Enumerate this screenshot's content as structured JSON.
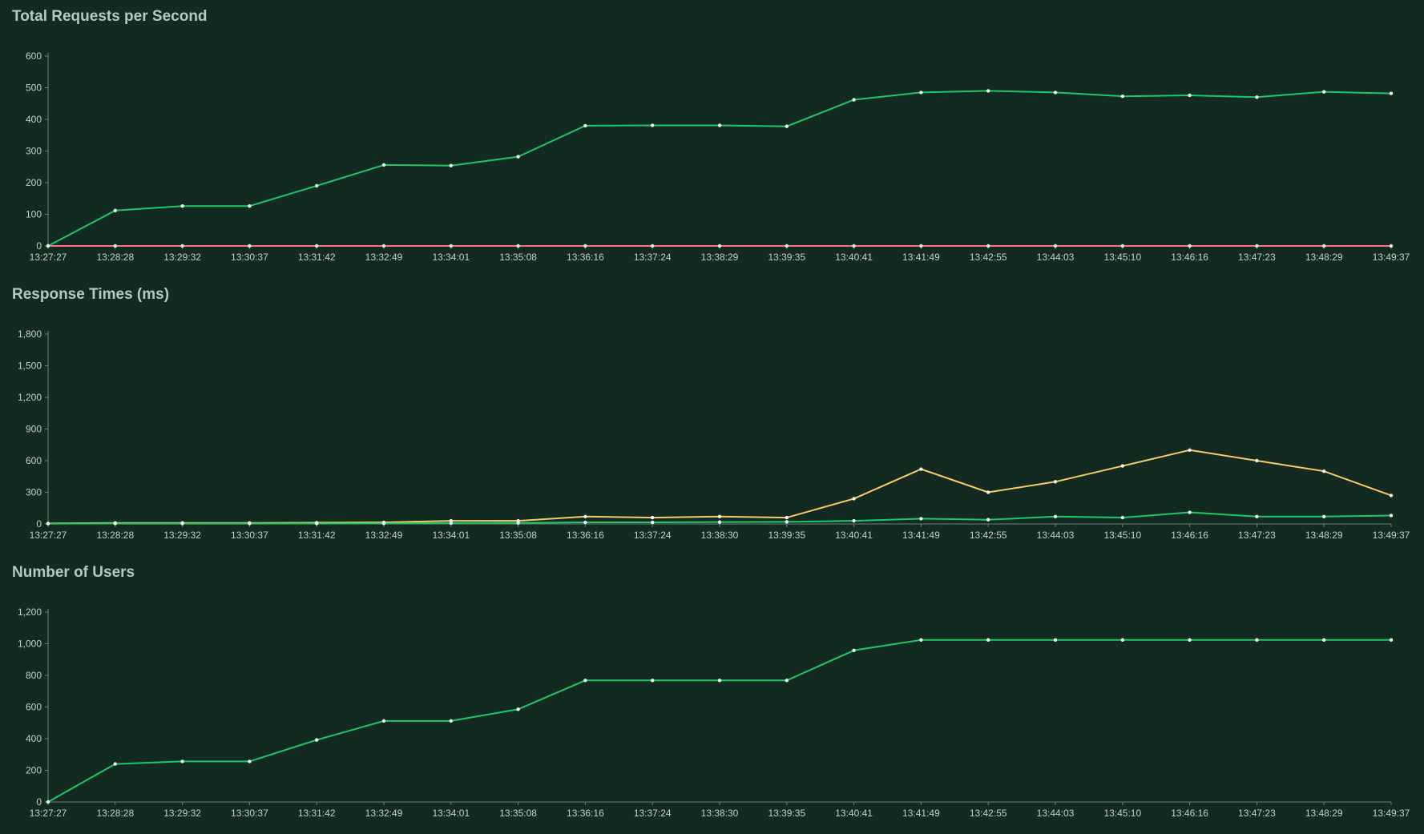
{
  "colors": {
    "background": "#132a21",
    "green": "#1fc864",
    "yellow": "#f4cc63",
    "red": "#ff6f7d",
    "axis": "#6c7d74"
  },
  "chart_data": [
    {
      "type": "line",
      "title": "Total Requests per Second",
      "ylim": [
        0,
        600
      ],
      "y_ticks": [
        0,
        100,
        200,
        300,
        400,
        500,
        600
      ],
      "y_tick_labels": [
        "0",
        "100",
        "200",
        "300",
        "400",
        "500",
        "600"
      ],
      "x_tick_labels": [
        "13:27:27",
        "13:28:28",
        "13:29:32",
        "13:30:37",
        "13:31:42",
        "13:32:49",
        "13:34:01",
        "13:35:08",
        "13:36:16",
        "13:37:24",
        "13:38:29",
        "13:39:35",
        "13:40:41",
        "13:41:49",
        "13:42:55",
        "13:44:03",
        "13:45:10",
        "13:46:16",
        "13:47:23",
        "13:48:29",
        "13:49:37"
      ],
      "x": [
        "13:27:27",
        "13:28:28",
        "13:29:32",
        "13:30:37",
        "13:31:42",
        "13:32:49",
        "13:34:01",
        "13:35:08",
        "13:36:16",
        "13:37:24",
        "13:38:29",
        "13:39:35",
        "13:40:41",
        "13:41:49",
        "13:42:55",
        "13:44:03",
        "13:45:10",
        "13:46:16",
        "13:47:23",
        "13:48:29",
        "13:49:37"
      ],
      "grid": false,
      "series": [
        {
          "color": "#1fc864",
          "values": [
            0,
            112,
            126,
            126,
            190,
            256,
            254,
            282,
            380,
            381,
            381,
            378,
            462,
            485,
            490,
            485,
            473,
            476,
            470,
            487,
            482
          ]
        },
        {
          "color": "#ff6f7d",
          "values": [
            0,
            0,
            0,
            0,
            0,
            0,
            0,
            0,
            0,
            0,
            0,
            0,
            0,
            0,
            0,
            0,
            0,
            0,
            0,
            0,
            0
          ]
        }
      ]
    },
    {
      "type": "line",
      "title": "Response Times (ms)",
      "ylim": [
        0,
        1800
      ],
      "y_ticks": [
        0,
        300,
        600,
        900,
        1200,
        1500,
        1800
      ],
      "y_tick_labels": [
        "0",
        "300",
        "600",
        "900",
        "1,200",
        "1,500",
        "1,800"
      ],
      "x_tick_labels": [
        "13:27:27",
        "13:28:28",
        "13:29:32",
        "13:30:37",
        "13:31:42",
        "13:32:49",
        "13:34:01",
        "13:35:08",
        "13:36:16",
        "13:37:24",
        "13:38:30",
        "13:39:35",
        "13:40:41",
        "13:41:49",
        "13:42:55",
        "13:44:03",
        "13:45:10",
        "13:46:16",
        "13:47:23",
        "13:48:29",
        "13:49:37"
      ],
      "x": [
        "13:27:27",
        "13:28:28",
        "13:29:32",
        "13:30:37",
        "13:31:42",
        "13:32:49",
        "13:34:01",
        "13:35:08",
        "13:36:16",
        "13:37:24",
        "13:38:30",
        "13:39:35",
        "13:40:41",
        "13:41:49",
        "13:42:55",
        "13:44:03",
        "13:45:10",
        "13:46:16",
        "13:47:23",
        "13:48:29",
        "13:49:37"
      ],
      "grid": false,
      "series": [
        {
          "color": "#f4cc63",
          "values": [
            5,
            10,
            10,
            10,
            12,
            15,
            30,
            30,
            70,
            60,
            70,
            60,
            240,
            520,
            300,
            400,
            550,
            700,
            600,
            500,
            270
          ]
        },
        {
          "color": "#1fc864",
          "values": [
            3,
            4,
            4,
            4,
            4,
            5,
            8,
            10,
            15,
            15,
            18,
            20,
            30,
            50,
            40,
            70,
            60,
            110,
            70,
            70,
            80
          ]
        }
      ]
    },
    {
      "type": "line",
      "title": "Number of Users",
      "ylim": [
        0,
        1200
      ],
      "y_ticks": [
        0,
        200,
        400,
        600,
        800,
        1000,
        1200
      ],
      "y_tick_labels": [
        "0",
        "200",
        "400",
        "600",
        "800",
        "1,000",
        "1,200"
      ],
      "x_tick_labels": [
        "13:27:27",
        "13:28:28",
        "13:29:32",
        "13:30:37",
        "13:31:42",
        "13:32:49",
        "13:34:01",
        "13:35:08",
        "13:36:16",
        "13:37:24",
        "13:38:30",
        "13:39:35",
        "13:40:41",
        "13:41:49",
        "13:42:55",
        "13:44:03",
        "13:45:10",
        "13:46:16",
        "13:47:23",
        "13:48:29",
        "13:49:37"
      ],
      "x": [
        "13:27:27",
        "13:28:28",
        "13:29:32",
        "13:30:37",
        "13:31:42",
        "13:32:49",
        "13:34:01",
        "13:35:08",
        "13:36:16",
        "13:37:24",
        "13:38:30",
        "13:39:35",
        "13:40:41",
        "13:41:49",
        "13:42:55",
        "13:44:03",
        "13:45:10",
        "13:46:16",
        "13:47:23",
        "13:48:29",
        "13:49:37"
      ],
      "grid": false,
      "series": [
        {
          "color": "#1fc864",
          "values": [
            0,
            240,
            256,
            256,
            392,
            512,
            512,
            586,
            768,
            768,
            768,
            768,
            958,
            1024,
            1024,
            1024,
            1024,
            1024,
            1024,
            1024,
            1024
          ]
        }
      ]
    }
  ]
}
